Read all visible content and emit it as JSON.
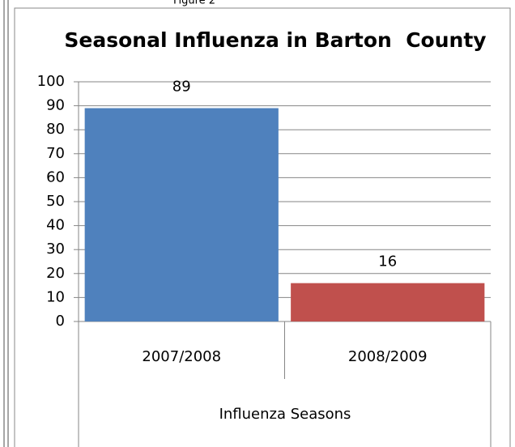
{
  "chart_data": {
    "type": "bar",
    "figure_label": "Figure 2",
    "title": "Seasonal Influenza in Barton  County",
    "categories": [
      "2007/2008",
      "2008/2009"
    ],
    "values": [
      89,
      16
    ],
    "colors": [
      "#4f81bd",
      "#c0504d"
    ],
    "x_label": "Influenza Seasons",
    "ylim": [
      0,
      100
    ],
    "yticks": [
      0,
      10,
      20,
      30,
      40,
      50,
      60,
      70,
      80,
      90,
      100
    ],
    "grid": true
  }
}
